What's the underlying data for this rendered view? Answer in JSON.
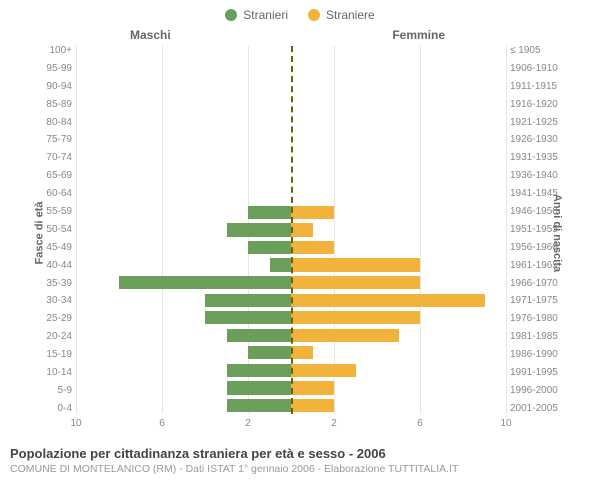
{
  "legend": {
    "m": "Stranieri",
    "f": "Straniere"
  },
  "columns": {
    "m": "Maschi",
    "f": "Femmine"
  },
  "axes": {
    "left_label": "Fasce di età",
    "right_label": "Anni di nascita",
    "x_max": 10,
    "x_ticks_m": [
      "10",
      "6",
      "2"
    ],
    "x_ticks_f": [
      "2",
      "6",
      "10"
    ]
  },
  "colors": {
    "m": "#6b9e5a",
    "f": "#f2b33d",
    "grid": "#e5e5e5",
    "center": "#666600",
    "bg": "#ffffff"
  },
  "rows": [
    {
      "age": "100+",
      "birth": "≤ 1905",
      "m": 0,
      "f": 0
    },
    {
      "age": "95-99",
      "birth": "1906-1910",
      "m": 0,
      "f": 0
    },
    {
      "age": "90-94",
      "birth": "1911-1915",
      "m": 0,
      "f": 0
    },
    {
      "age": "85-89",
      "birth": "1916-1920",
      "m": 0,
      "f": 0
    },
    {
      "age": "80-84",
      "birth": "1921-1925",
      "m": 0,
      "f": 0
    },
    {
      "age": "75-79",
      "birth": "1926-1930",
      "m": 0,
      "f": 0
    },
    {
      "age": "70-74",
      "birth": "1931-1935",
      "m": 0,
      "f": 0
    },
    {
      "age": "65-69",
      "birth": "1936-1940",
      "m": 0,
      "f": 0
    },
    {
      "age": "60-64",
      "birth": "1941-1945",
      "m": 0,
      "f": 0
    },
    {
      "age": "55-59",
      "birth": "1946-1950",
      "m": 2,
      "f": 2
    },
    {
      "age": "50-54",
      "birth": "1951-1955",
      "m": 3,
      "f": 1
    },
    {
      "age": "45-49",
      "birth": "1956-1960",
      "m": 2,
      "f": 2
    },
    {
      "age": "40-44",
      "birth": "1961-1965",
      "m": 1,
      "f": 6
    },
    {
      "age": "35-39",
      "birth": "1966-1970",
      "m": 8,
      "f": 6
    },
    {
      "age": "30-34",
      "birth": "1971-1975",
      "m": 4,
      "f": 9
    },
    {
      "age": "25-29",
      "birth": "1976-1980",
      "m": 4,
      "f": 6
    },
    {
      "age": "20-24",
      "birth": "1981-1985",
      "m": 3,
      "f": 5
    },
    {
      "age": "15-19",
      "birth": "1986-1990",
      "m": 2,
      "f": 1
    },
    {
      "age": "10-14",
      "birth": "1991-1995",
      "m": 3,
      "f": 3
    },
    {
      "age": "5-9",
      "birth": "1996-2000",
      "m": 3,
      "f": 2
    },
    {
      "age": "0-4",
      "birth": "2001-2005",
      "m": 3,
      "f": 2
    }
  ],
  "footer": {
    "title": "Popolazione per cittadinanza straniera per età e sesso - 2006",
    "sub": "COMUNE DI MONTELANICO (RM) - Dati ISTAT 1° gennaio 2006 - Elaborazione TUTTITALIA.IT"
  }
}
